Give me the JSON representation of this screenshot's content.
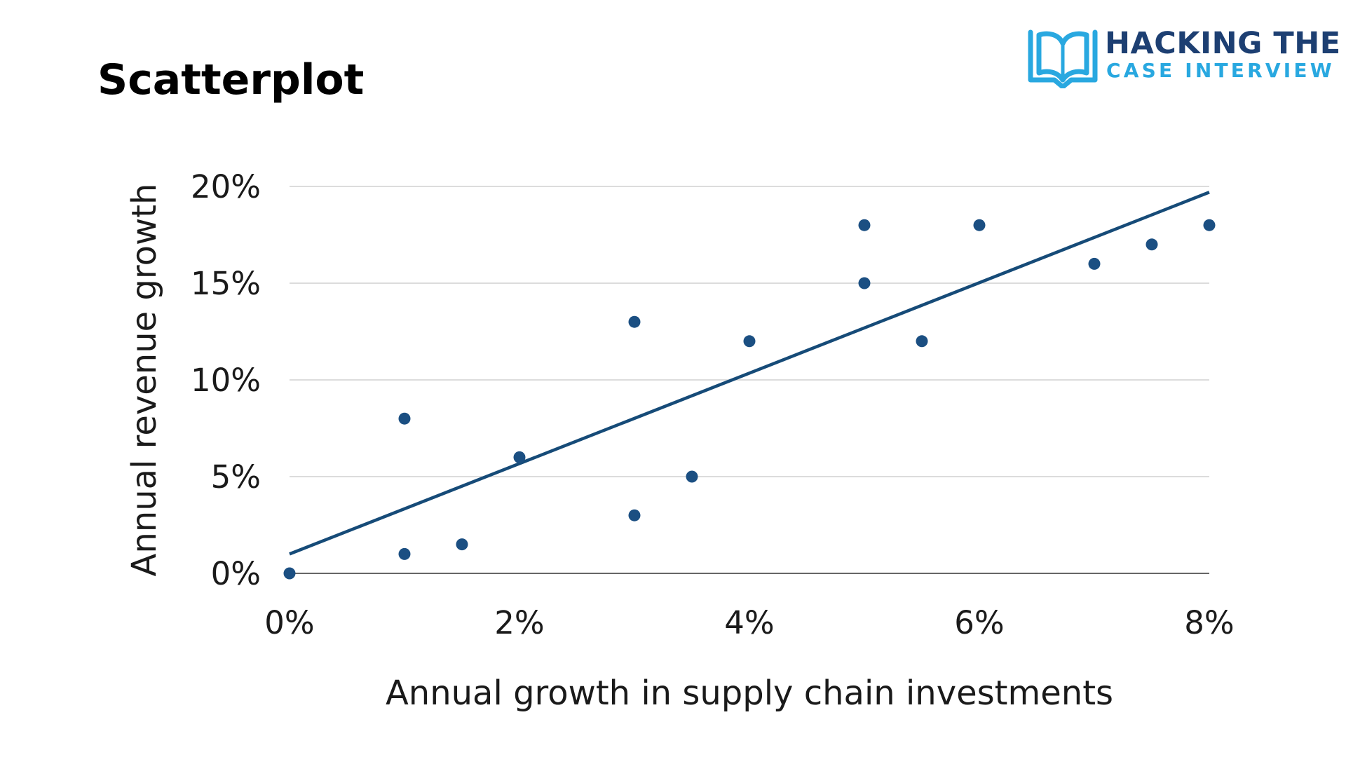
{
  "page": {
    "title": "Scatterplot"
  },
  "logo": {
    "line1": "HACKING THE",
    "line2": "CASE INTERVIEW",
    "icon": "open-book-icon",
    "colors": {
      "dark": "#1d3f72",
      "light": "#29a8e0"
    }
  },
  "chart_data": {
    "type": "scatter",
    "title": "Scatterplot",
    "xlabel": "Annual growth in supply chain investments",
    "ylabel": "Annual revenue growth",
    "xlim": [
      0,
      8
    ],
    "ylim": [
      0,
      20
    ],
    "x_ticks": [
      0,
      2,
      4,
      6,
      8
    ],
    "x_tick_labels": [
      "0%",
      "2%",
      "4%",
      "6%",
      "8%"
    ],
    "y_ticks": [
      0,
      5,
      10,
      15,
      20
    ],
    "y_tick_labels": [
      "0%",
      "5%",
      "10%",
      "15%",
      "20%"
    ],
    "grid": "horizontal",
    "legend": "none",
    "marker_color": "#1b4f82",
    "trendline_color": "#164b78",
    "points": [
      {
        "x": 0,
        "y": 0
      },
      {
        "x": 1,
        "y": 1
      },
      {
        "x": 1,
        "y": 8
      },
      {
        "x": 1.5,
        "y": 1.5
      },
      {
        "x": 2,
        "y": 6
      },
      {
        "x": 3,
        "y": 3
      },
      {
        "x": 3,
        "y": 13
      },
      {
        "x": 3.5,
        "y": 5
      },
      {
        "x": 4,
        "y": 12
      },
      {
        "x": 5,
        "y": 15
      },
      {
        "x": 5,
        "y": 18
      },
      {
        "x": 5.5,
        "y": 12
      },
      {
        "x": 6,
        "y": 18
      },
      {
        "x": 7,
        "y": 16
      },
      {
        "x": 7.5,
        "y": 17
      },
      {
        "x": 8,
        "y": 18
      }
    ],
    "trendline": {
      "type": "linear",
      "start": {
        "x": 0,
        "y": 1
      },
      "end": {
        "x": 8,
        "y": 19.7
      }
    }
  }
}
